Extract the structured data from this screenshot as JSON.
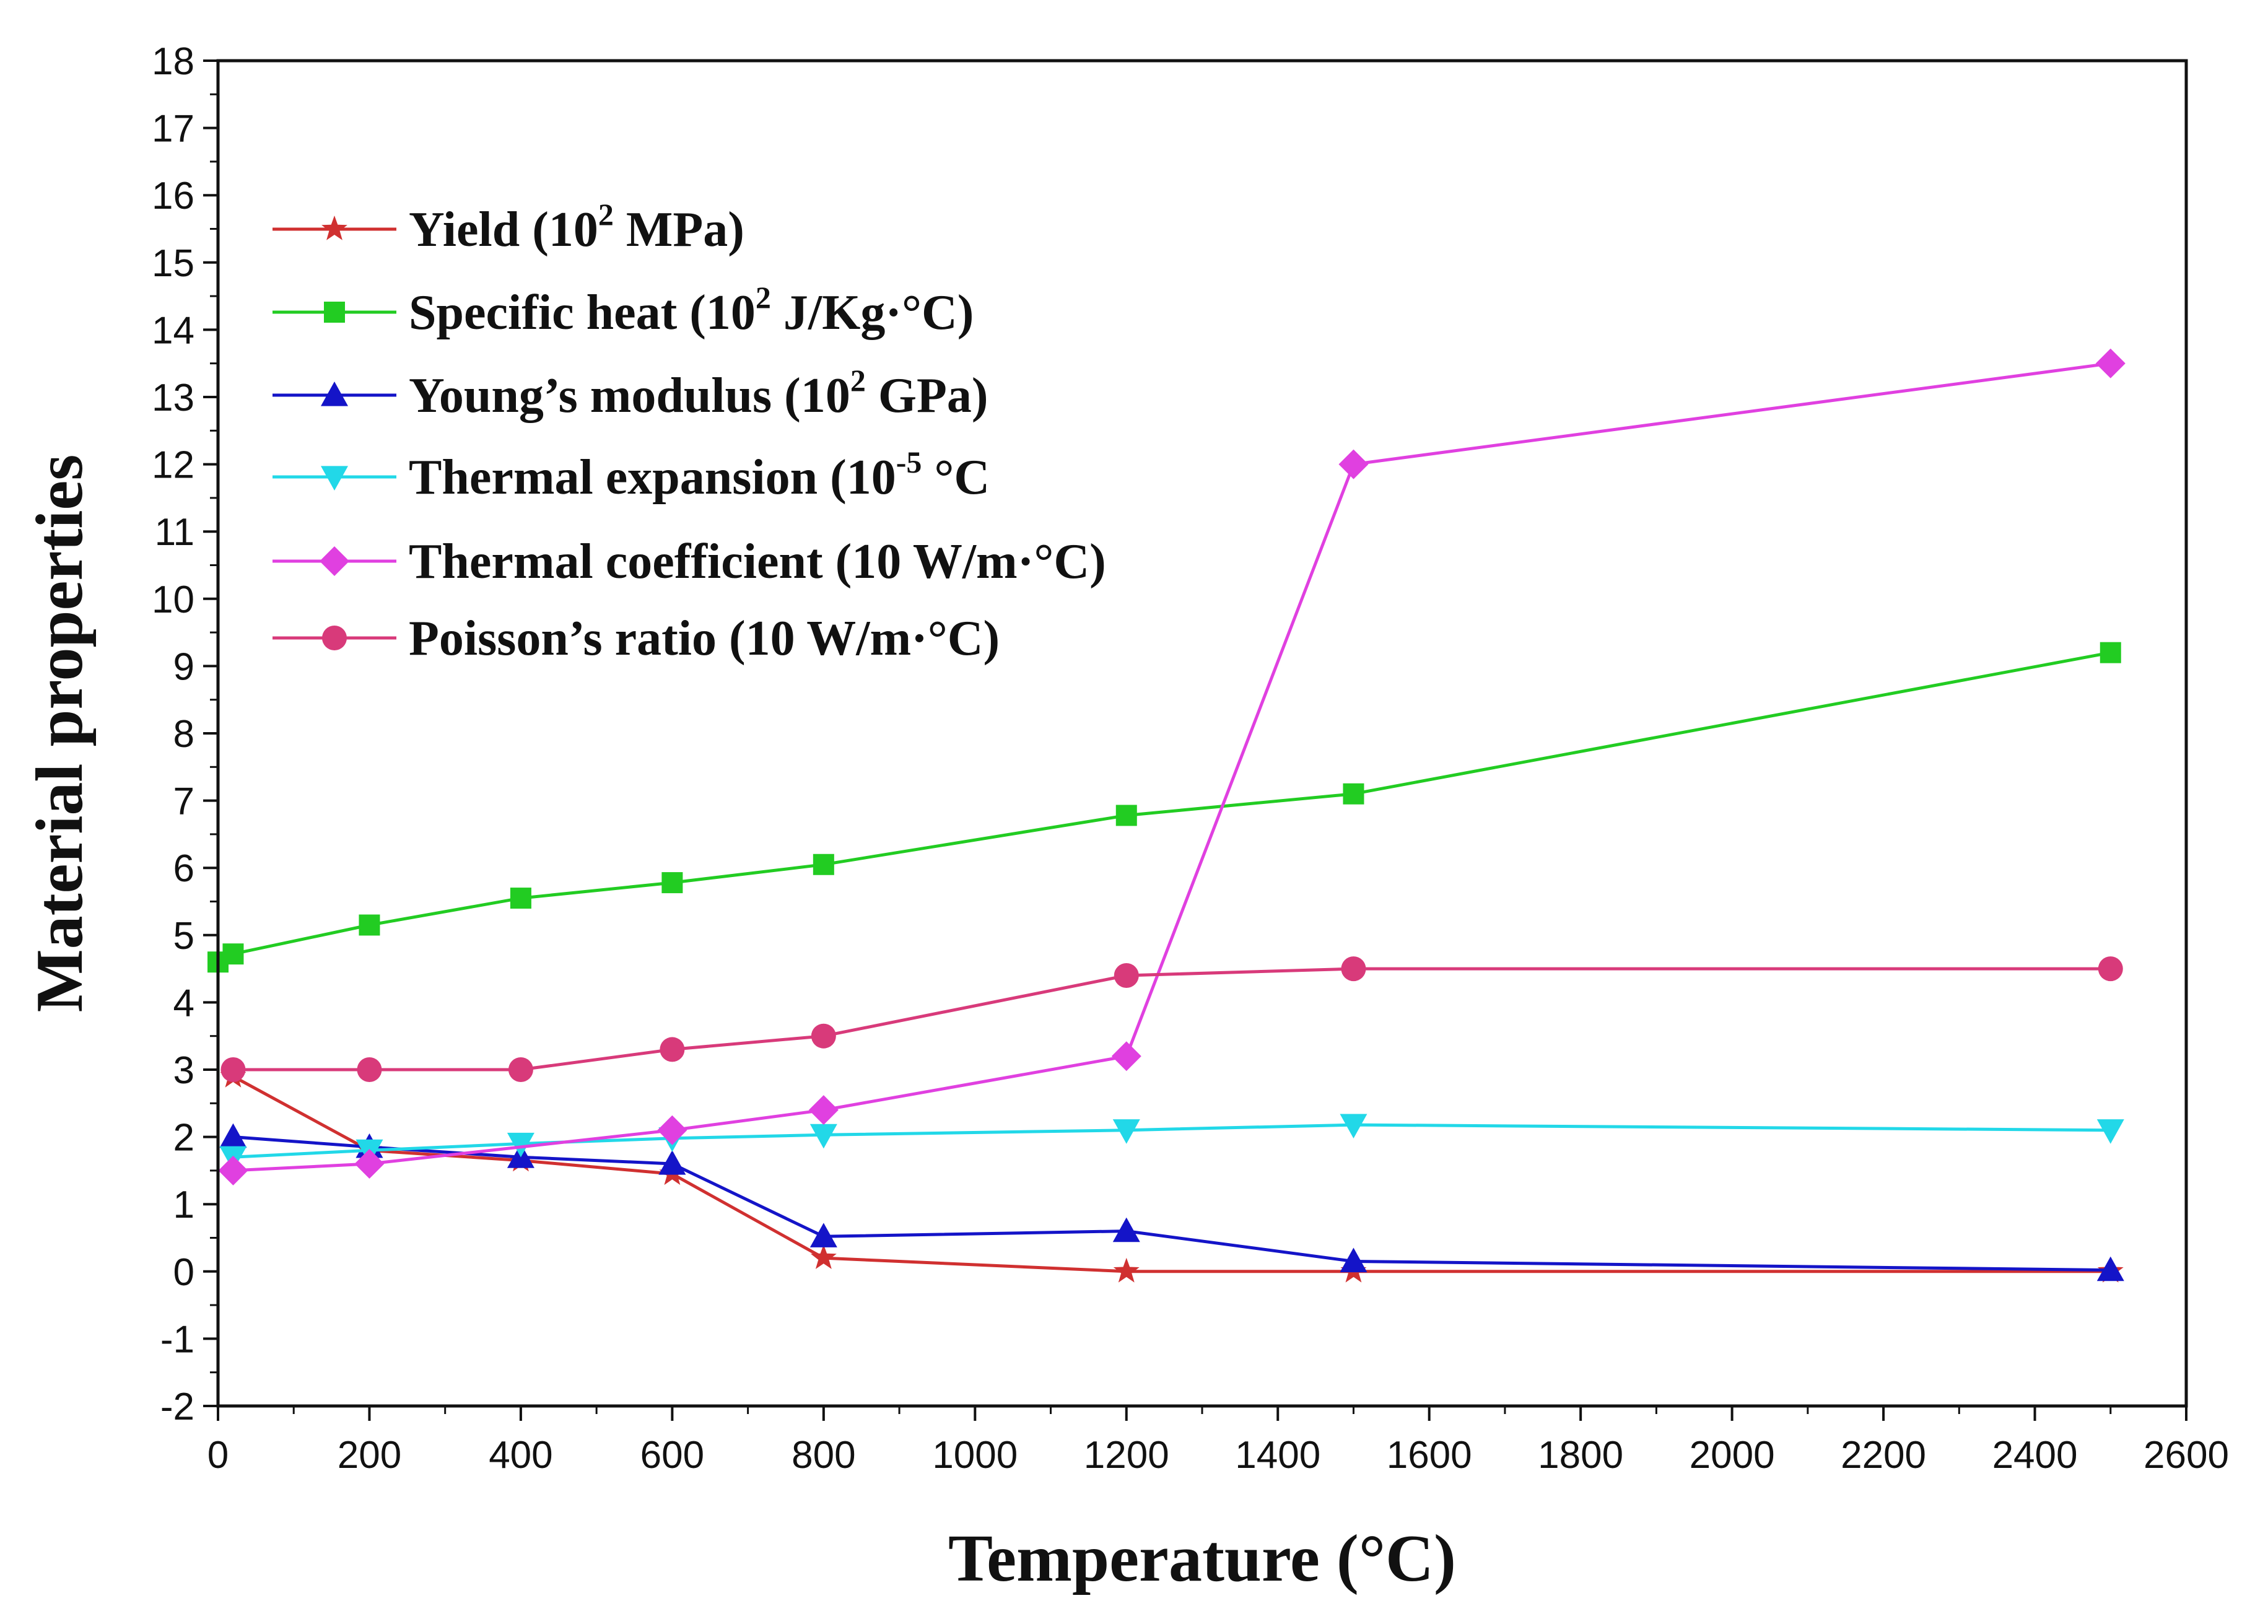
{
  "chart_data": {
    "type": "line",
    "title": "",
    "xlabel": "Temperature (°C)",
    "ylabel": "Material properties",
    "xlim": [
      0,
      2600
    ],
    "ylim": [
      -2,
      18
    ],
    "x_ticks": [
      "0",
      "200",
      "400",
      "600",
      "800",
      "1000",
      "1200",
      "1400",
      "1600",
      "1800",
      "2000",
      "2200",
      "2400",
      "2600"
    ],
    "y_ticks": [
      "-2",
      "-1",
      "0",
      "1",
      "2",
      "3",
      "4",
      "5",
      "6",
      "7",
      "8",
      "9",
      "10",
      "11",
      "12",
      "13",
      "14",
      "15",
      "16",
      "17",
      "18"
    ],
    "legend_position": "top-left",
    "series": [
      {
        "name": "Yield (10² MPa)",
        "label_main": "Yield (10",
        "label_sup": "2",
        "label_tail": " MPa)",
        "color": "#d03030",
        "marker": "star",
        "x": [
          20,
          200,
          400,
          600,
          800,
          1200,
          1500,
          2500
        ],
        "values": [
          2.9,
          1.8,
          1.65,
          1.45,
          0.2,
          0.0,
          0.0,
          0.0
        ]
      },
      {
        "name": "Specific heat (10² J/Kg·°C)",
        "label_main": "Specific heat (10",
        "label_sup": "2",
        "label_tail": " J/Kg·°C)",
        "color": "#22cc22",
        "marker": "square",
        "x": [
          0,
          20,
          200,
          400,
          600,
          800,
          1200,
          1500,
          2500
        ],
        "values": [
          4.6,
          4.72,
          5.15,
          5.55,
          5.78,
          6.05,
          6.78,
          7.1,
          9.2
        ]
      },
      {
        "name": "Young’s modulus (10² GPa)",
        "label_main": "Young’s modulus (10",
        "label_sup": "2",
        "label_tail": " GPa)",
        "color": "#1414c8",
        "marker": "triangle-up",
        "x": [
          20,
          200,
          400,
          600,
          800,
          1200,
          1500,
          2500
        ],
        "values": [
          2.0,
          1.85,
          1.7,
          1.6,
          0.52,
          0.6,
          0.15,
          0.02
        ]
      },
      {
        "name": "Thermal expansion (10⁻⁵ °C",
        "label_main": "Thermal expansion (10",
        "label_sup": "-5",
        "label_tail": " °C",
        "color": "#22d8e8",
        "marker": "triangle-down",
        "x": [
          20,
          200,
          400,
          600,
          800,
          1200,
          1500,
          2500
        ],
        "values": [
          1.7,
          1.8,
          1.9,
          1.98,
          2.03,
          2.1,
          2.18,
          2.1
        ]
      },
      {
        "name": "Thermal coefficient (10 W/m·°C)",
        "label_main": "Thermal coefficient (10 W/m·°C)",
        "label_sup": "",
        "label_tail": "",
        "color": "#e040e0",
        "marker": "diamond",
        "x": [
          20,
          200,
          600,
          800,
          1200,
          1500,
          2500
        ],
        "values": [
          1.5,
          1.6,
          2.1,
          2.4,
          3.2,
          12.0,
          13.5
        ]
      },
      {
        "name": "Poisson’s ratio (10 W/m·°C)",
        "label_main": "Poisson’s ratio (10 W/m·°C)",
        "label_sup": "",
        "label_tail": "",
        "color": "#d83a7a",
        "marker": "circle",
        "x": [
          20,
          200,
          400,
          600,
          800,
          1200,
          1500,
          2500
        ],
        "values": [
          3.0,
          3.0,
          3.0,
          3.3,
          3.5,
          4.4,
          4.5,
          4.5
        ]
      }
    ]
  }
}
